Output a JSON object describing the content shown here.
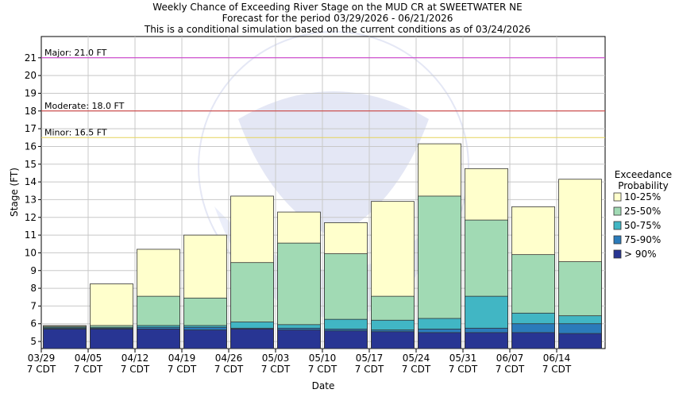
{
  "chart_data": {
    "type": "bar",
    "title": "Weekly Chance of Exceeding River Stage on the MUD CR at SWEETWATER NE",
    "subtitle1": "Forecast for the period 03/29/2026 - 06/21/2026",
    "subtitle2": "This is a conditional simulation based on the current conditions as of 03/24/2026",
    "xlabel": "Date",
    "ylabel": "Stage (FT)",
    "ylim": [
      4.6,
      22.2
    ],
    "y_ticks": [
      5,
      6,
      7,
      8,
      9,
      10,
      11,
      12,
      13,
      14,
      15,
      16,
      17,
      18,
      19,
      20,
      21
    ],
    "categories": [
      "03/29",
      "04/05",
      "04/12",
      "04/19",
      "04/26",
      "05/03",
      "05/10",
      "05/17",
      "05/24",
      "05/31",
      "06/07",
      "06/14"
    ],
    "category_sublabel": "7 CDT",
    "grid": true,
    "flood_levels": [
      {
        "label": "Major: 21.0 FT",
        "value": 21.0,
        "color": "#cc33cc"
      },
      {
        "label": "Moderate: 18.0 FT",
        "value": 18.0,
        "color": "#cc3333"
      },
      {
        "label": "Minor: 16.5 FT",
        "value": 16.5,
        "color": "#e6d35c"
      }
    ],
    "legend": {
      "title_line1": "Exceedance",
      "title_line2": "Probability",
      "placement": "right",
      "entries": [
        "10-25%",
        "25-50%",
        "50-75%",
        "75-90%",
        "> 90%"
      ]
    },
    "series": [
      {
        "name": "> 90%",
        "color": "#283593",
        "values": [
          5.7,
          5.7,
          5.7,
          5.65,
          5.7,
          5.65,
          5.6,
          5.55,
          5.5,
          5.5,
          5.5,
          5.45
        ]
      },
      {
        "name": "75-90%",
        "color": "#2b7bba",
        "values": [
          5.75,
          5.75,
          5.8,
          5.8,
          5.75,
          5.75,
          5.7,
          5.65,
          5.7,
          5.75,
          6.0,
          6.0
        ]
      },
      {
        "name": "50-75%",
        "color": "#41b6c4",
        "values": [
          5.8,
          5.8,
          5.9,
          5.9,
          6.1,
          5.95,
          6.25,
          6.2,
          6.3,
          7.55,
          6.6,
          6.45
        ]
      },
      {
        "name": "25-50%",
        "color": "#a1dab4",
        "values": [
          5.85,
          5.9,
          7.55,
          7.45,
          9.45,
          10.55,
          9.95,
          7.55,
          13.2,
          11.85,
          9.9,
          9.5
        ]
      },
      {
        "name": "10-25%",
        "color": "#ffffcc",
        "values": [
          5.9,
          8.25,
          10.2,
          11.0,
          13.2,
          12.3,
          11.7,
          12.9,
          16.15,
          14.75,
          12.6,
          14.15
        ]
      }
    ]
  }
}
